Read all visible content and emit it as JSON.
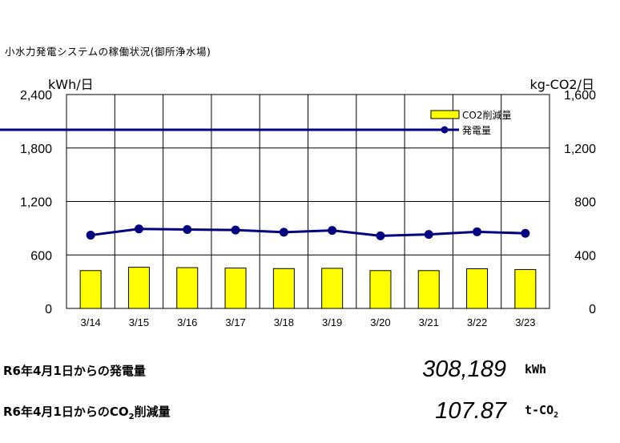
{
  "title": "小水力発電システムの稼働状況(御所浄水場)",
  "chart_data": {
    "type": "bar+line",
    "categories": [
      "3/14",
      "3/15",
      "3/16",
      "3/17",
      "3/18",
      "3/19",
      "3/20",
      "3/21",
      "3/22",
      "3/23"
    ],
    "left_axis": {
      "unit": "kWh/日",
      "ticks": [
        "0",
        "600",
        "1,200",
        "1,800",
        "2,400"
      ],
      "range": [
        0,
        2400
      ]
    },
    "right_axis": {
      "unit": "kg-CO2/日",
      "ticks": [
        "0",
        "400",
        "800",
        "1,200",
        "1,600"
      ],
      "range": [
        0,
        1600
      ]
    },
    "series": [
      {
        "name": "CO2削減量",
        "kind": "bar",
        "axis": "right",
        "color": "#FFFF00",
        "values": [
          283,
          308,
          305,
          302,
          298,
          300,
          283,
          283,
          297,
          291
        ]
      },
      {
        "name": "発電量",
        "kind": "line",
        "axis": "left",
        "color": "#000080",
        "values": [
          822,
          892,
          885,
          880,
          855,
          875,
          815,
          830,
          860,
          843
        ]
      }
    ],
    "grid": true,
    "legend_position": "top-right"
  },
  "stats": {
    "generation": {
      "label_main": "R6年4月1日からの発電量",
      "value": "308,189",
      "unit": "kWh"
    },
    "co2": {
      "label_prefix": "R6年4月1日からのCO",
      "label_sub": "2",
      "label_suffix": "削減量",
      "value": "107.87",
      "unit_main": "t-CO",
      "unit_sub": "2"
    }
  }
}
